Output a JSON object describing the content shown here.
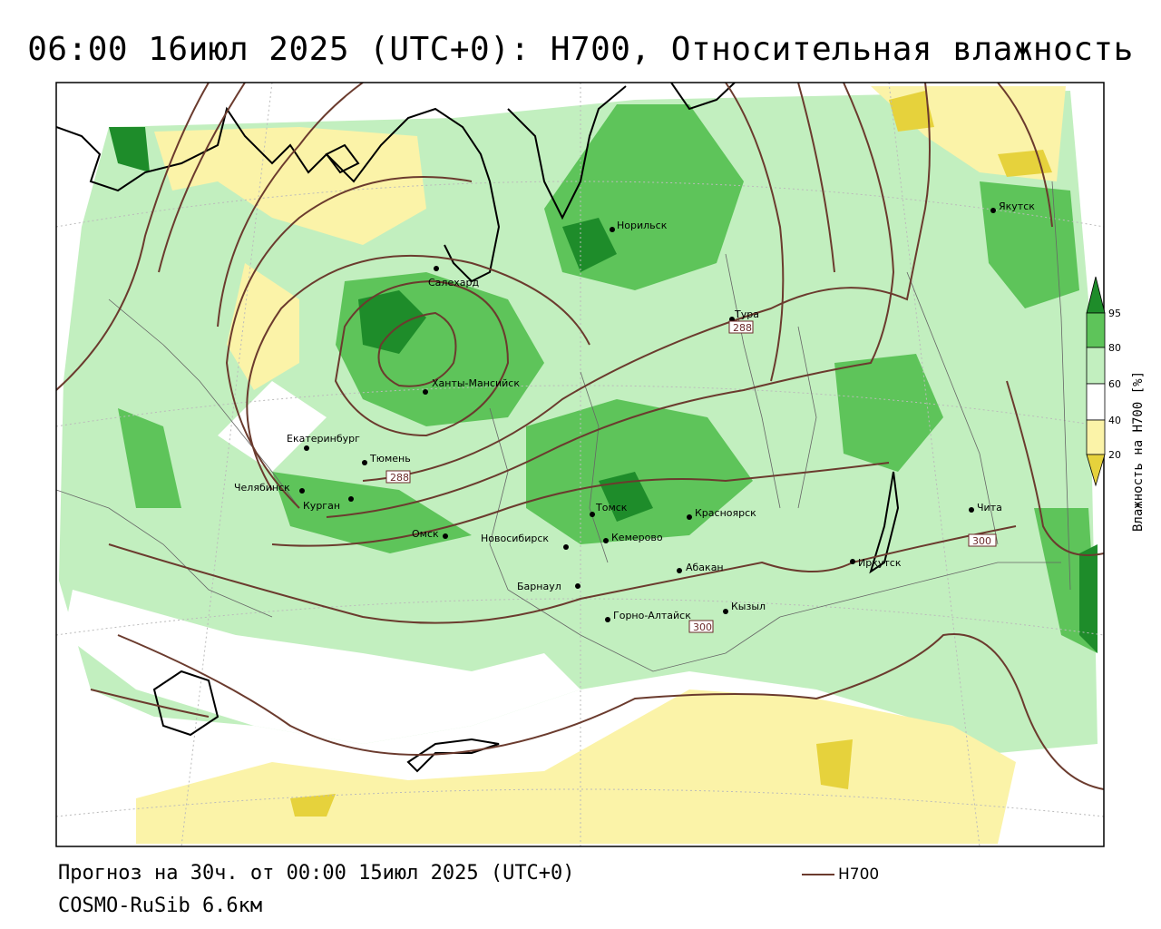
{
  "title": "06:00 16июл 2025 (UTC+0): H700, Относительная влажность",
  "footer": {
    "forecast": "Прогноз на 30ч. от 00:00 15июл 2025 (UTC+0)",
    "model": "COSMO-RuSib 6.6км",
    "legend_line_label": "H700"
  },
  "colorbar": {
    "title": "Влажность на H700 [%]",
    "ticks": [
      "95",
      "80",
      "60",
      "40",
      "20"
    ],
    "colors": {
      "c95": "#1e8c2a",
      "c80": "#5ec45a",
      "c60": "#c2efbf",
      "c40": "#ffffff",
      "c20": "#fbf3a8",
      "c10": "#e6d23c"
    }
  },
  "contour_labels": [
    "288",
    "288",
    "300",
    "300"
  ],
  "cities": [
    {
      "name": "Норильск"
    },
    {
      "name": "Якутск"
    },
    {
      "name": "Салехард"
    },
    {
      "name": "Тура"
    },
    {
      "name": "Ханты-Мансийск"
    },
    {
      "name": "Екатеринбург"
    },
    {
      "name": "Тюмень"
    },
    {
      "name": "Челябинск"
    },
    {
      "name": "Курган"
    },
    {
      "name": "Омск"
    },
    {
      "name": "Новосибирск"
    },
    {
      "name": "Томск"
    },
    {
      "name": "Кемерово"
    },
    {
      "name": "Красноярск"
    },
    {
      "name": "Барнаул"
    },
    {
      "name": "Абакан"
    },
    {
      "name": "Горно-Алтайск"
    },
    {
      "name": "Кызыл"
    },
    {
      "name": "Иркутск"
    },
    {
      "name": "Чита"
    }
  ]
}
